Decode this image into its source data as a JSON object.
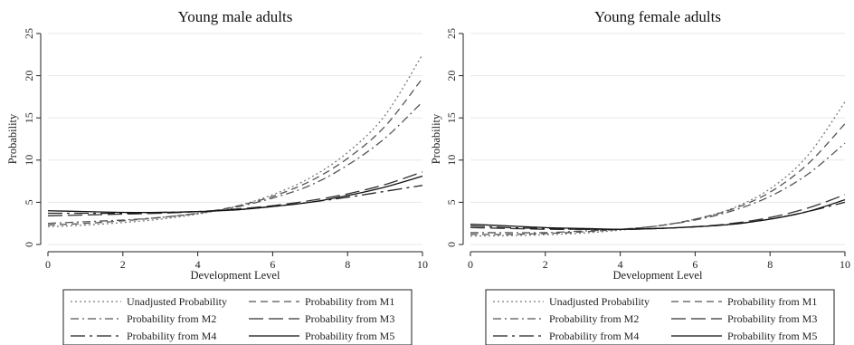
{
  "chart_data": [
    {
      "type": "line",
      "title": "Young male adults",
      "xlabel": "Development Level",
      "ylabel": "Probability",
      "xlim": [
        0,
        10
      ],
      "ylim": [
        0,
        25
      ],
      "xticks": [
        0,
        2,
        4,
        6,
        8,
        10
      ],
      "yticks": [
        0,
        5,
        10,
        15,
        20,
        25
      ],
      "grid": true,
      "legend_position": "bottom",
      "x": [
        0,
        1,
        2,
        3,
        4,
        5,
        6,
        7,
        8,
        9,
        10
      ],
      "series": [
        {
          "name": "Unadjusted Probability",
          "style": "dot",
          "color": "#7a7a7a",
          "values": [
            2.1,
            2.3,
            2.6,
            3.0,
            3.6,
            4.5,
            5.9,
            7.9,
            10.9,
            15.3,
            22.5
          ]
        },
        {
          "name": "Probability from M1",
          "style": "dash",
          "color": "#555555",
          "values": [
            2.3,
            2.5,
            2.8,
            3.2,
            3.7,
            4.5,
            5.7,
            7.5,
            10.2,
            14.0,
            19.7
          ]
        },
        {
          "name": "Probability from M2",
          "style": "dashdot",
          "color": "#555555",
          "values": [
            2.5,
            2.7,
            2.9,
            3.2,
            3.7,
            4.4,
            5.5,
            7.0,
            9.4,
            12.6,
            16.9
          ]
        },
        {
          "name": "Probability from M3",
          "style": "longdash",
          "color": "#333333",
          "values": [
            3.4,
            3.5,
            3.6,
            3.7,
            3.9,
            4.2,
            4.6,
            5.2,
            6.0,
            7.1,
            8.6
          ]
        },
        {
          "name": "Probability from M4",
          "style": "longdashdot",
          "color": "#222222",
          "values": [
            3.7,
            3.7,
            3.7,
            3.8,
            3.9,
            4.1,
            4.5,
            5.0,
            5.6,
            6.3,
            7.0
          ]
        },
        {
          "name": "Probability from M5",
          "style": "solid",
          "color": "#111111",
          "values": [
            4.0,
            3.9,
            3.8,
            3.8,
            3.9,
            4.1,
            4.5,
            5.0,
            5.8,
            6.8,
            8.1
          ]
        }
      ]
    },
    {
      "type": "line",
      "title": "Young female adults",
      "xlabel": "Development Level",
      "ylabel": "Probability",
      "xlim": [
        0,
        10
      ],
      "ylim": [
        0,
        25
      ],
      "xticks": [
        0,
        2,
        4,
        6,
        8,
        10
      ],
      "yticks": [
        0,
        5,
        10,
        15,
        20,
        25
      ],
      "grid": true,
      "legend_position": "bottom",
      "x": [
        0,
        1,
        2,
        3,
        4,
        5,
        6,
        7,
        8,
        9,
        10
      ],
      "series": [
        {
          "name": "Unadjusted Probability",
          "style": "dot",
          "color": "#7a7a7a",
          "values": [
            1.0,
            1.05,
            1.15,
            1.35,
            1.7,
            2.2,
            3.0,
            4.3,
            6.6,
            10.5,
            16.9
          ]
        },
        {
          "name": "Probability from M1",
          "style": "dash",
          "color": "#555555",
          "values": [
            1.2,
            1.2,
            1.3,
            1.5,
            1.8,
            2.2,
            3.0,
            4.2,
            6.2,
            9.5,
            14.3
          ]
        },
        {
          "name": "Probability from M2",
          "style": "dashdot",
          "color": "#555555",
          "values": [
            1.4,
            1.4,
            1.4,
            1.6,
            1.8,
            2.2,
            2.9,
            4.0,
            5.7,
            8.3,
            12.0
          ]
        },
        {
          "name": "Probability from M3",
          "style": "longdash",
          "color": "#333333",
          "values": [
            2.0,
            1.9,
            1.8,
            1.8,
            1.8,
            1.9,
            2.1,
            2.5,
            3.2,
            4.3,
            5.9
          ]
        },
        {
          "name": "Probability from M4",
          "style": "longdashdot",
          "color": "#222222",
          "values": [
            2.2,
            2.0,
            1.9,
            1.8,
            1.8,
            1.9,
            2.1,
            2.4,
            3.0,
            3.9,
            5.0
          ]
        },
        {
          "name": "Probability from M5",
          "style": "solid",
          "color": "#111111",
          "values": [
            2.4,
            2.2,
            2.0,
            1.9,
            1.8,
            1.9,
            2.1,
            2.4,
            3.0,
            3.9,
            5.3
          ]
        }
      ]
    }
  ]
}
